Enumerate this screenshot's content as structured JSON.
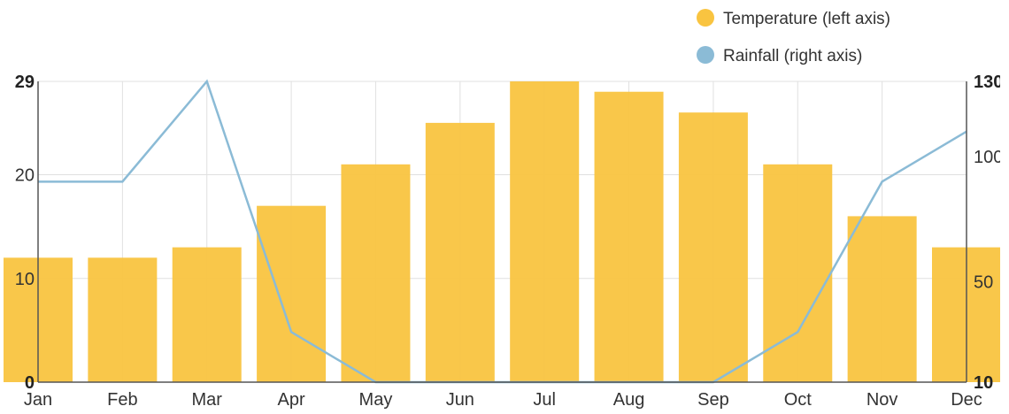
{
  "chart_data": {
    "type": "bar",
    "categories": [
      "Jan",
      "Feb",
      "Mar",
      "Apr",
      "May",
      "Jun",
      "Jul",
      "Aug",
      "Sep",
      "Oct",
      "Nov",
      "Dec"
    ],
    "series": [
      {
        "name": "Temperature (left axis)",
        "type": "bar",
        "axis": "left",
        "color": "#f9c440",
        "values": [
          12,
          12,
          13,
          17,
          21,
          25,
          29,
          28,
          26,
          21,
          16,
          13
        ]
      },
      {
        "name": "Rainfall (right axis)",
        "type": "line",
        "axis": "right",
        "color": "#8bbbd6",
        "values": [
          90,
          90,
          130,
          30,
          10,
          10,
          10,
          10,
          10,
          30,
          90,
          110
        ]
      }
    ],
    "left_axis": {
      "min": 0,
      "max": 29,
      "ticks": [
        0,
        10,
        20,
        29
      ],
      "tick_labels": [
        "0",
        "10",
        "20",
        "29"
      ]
    },
    "right_axis": {
      "min": 10,
      "max": 130,
      "ticks": [
        10,
        50,
        100,
        130
      ],
      "tick_labels": [
        "10",
        "50",
        "100",
        "130"
      ]
    },
    "title": "",
    "xlabel": "",
    "ylabel": "",
    "grid": true,
    "legend_position": "top-right",
    "legend": [
      {
        "label": "Temperature (left axis)",
        "color": "#f9c440"
      },
      {
        "label": "Rainfall (right axis)",
        "color": "#8bbbd6"
      }
    ]
  }
}
